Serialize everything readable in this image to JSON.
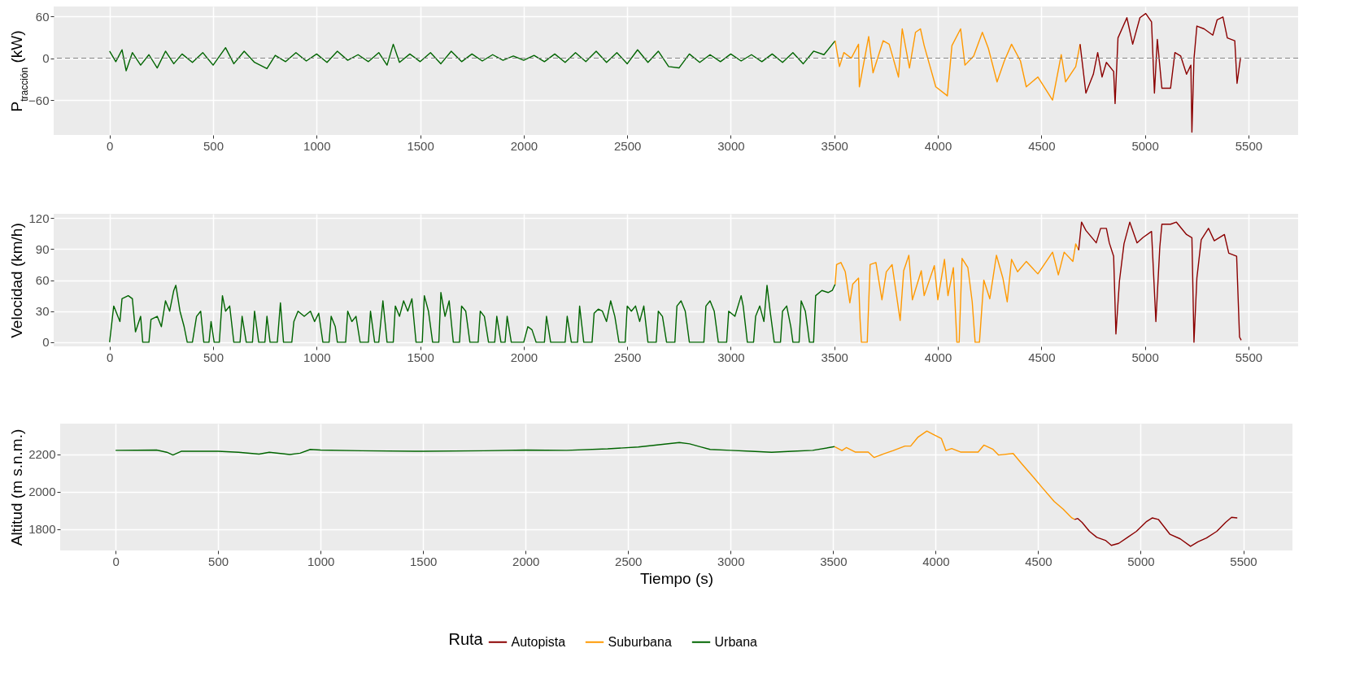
{
  "chart_data": [
    {
      "type": "line",
      "ylabel": "P$_{tracción}$ (kW)",
      "xlim": [
        -270,
        5740
      ],
      "xticks": [
        0,
        500,
        1000,
        1500,
        2000,
        2500,
        3000,
        3500,
        4000,
        4500,
        5000,
        5500
      ],
      "ylim": [
        -110,
        74
      ],
      "yticks": [
        -60,
        0,
        60
      ],
      "grid": true,
      "legend": false,
      "ref_lines": [
        {
          "axis": "y",
          "value": 0,
          "line_style": "dashed",
          "color": "#808080"
        }
      ],
      "series": [
        {
          "color": "#8b0000",
          "x": [
            4687,
            4715,
            4751,
            4772,
            4793,
            4814,
            4849,
            4856,
            4870,
            4913,
            4941,
            4976,
            5004,
            5032,
            5046,
            5060,
            5082,
            5124,
            5145,
            5173,
            5201,
            5222,
            5227,
            5237,
            5251,
            5286,
            5328,
            5349,
            5377,
            5398,
            5434,
            5445,
            5462
          ],
          "values": [
            20,
            -50,
            -23,
            8,
            -27,
            -6,
            -19,
            -65,
            29,
            58,
            20,
            58,
            64,
            52,
            -50,
            27,
            -43,
            -43,
            8,
            3,
            -23,
            -10,
            -106,
            -1,
            46,
            42,
            33,
            55,
            59,
            29,
            25,
            -36,
            1
          ]
        },
        {
          "color": "#ff9900",
          "x": [
            3504,
            3525,
            3546,
            3582,
            3617,
            3621,
            3666,
            3687,
            3736,
            3765,
            3810,
            3828,
            3863,
            3892,
            3916,
            3934,
            3990,
            4046,
            4068,
            4110,
            4131,
            4173,
            4215,
            4244,
            4286,
            4321,
            4356,
            4399,
            4427,
            4483,
            4554,
            4596,
            4617,
            4666,
            4687
          ],
          "values": [
            25,
            -12,
            8,
            0,
            20,
            -41,
            31,
            -21,
            25,
            20,
            -27,
            42,
            -14,
            37,
            42,
            18,
            -41,
            -54,
            18,
            42,
            -10,
            3,
            37,
            14,
            -34,
            -4,
            20,
            -4,
            -41,
            -27,
            -60,
            5,
            -34,
            -12,
            20
          ]
        },
        {
          "color": "#006400",
          "x": [
            0,
            30,
            60,
            80,
            110,
            150,
            190,
            230,
            270,
            310,
            350,
            400,
            450,
            500,
            560,
            600,
            650,
            700,
            760,
            800,
            850,
            900,
            950,
            1000,
            1050,
            1100,
            1150,
            1200,
            1250,
            1300,
            1340,
            1370,
            1400,
            1450,
            1500,
            1550,
            1600,
            1650,
            1700,
            1750,
            1800,
            1850,
            1900,
            1950,
            2000,
            2050,
            2100,
            2150,
            2200,
            2250,
            2300,
            2350,
            2400,
            2450,
            2500,
            2550,
            2600,
            2650,
            2700,
            2750,
            2800,
            2850,
            2900,
            2950,
            3000,
            3050,
            3100,
            3150,
            3200,
            3250,
            3300,
            3350,
            3400,
            3450,
            3504
          ],
          "values": [
            10,
            -5,
            12,
            -18,
            8,
            -10,
            5,
            -14,
            10,
            -8,
            6,
            -6,
            8,
            -10,
            15,
            -8,
            10,
            -6,
            -15,
            4,
            -5,
            8,
            -4,
            6,
            -6,
            10,
            -3,
            5,
            -5,
            8,
            -10,
            20,
            -6,
            6,
            -5,
            8,
            -8,
            10,
            -5,
            6,
            -4,
            5,
            -3,
            3,
            -3,
            4,
            -5,
            6,
            -6,
            8,
            -5,
            10,
            -6,
            8,
            -8,
            12,
            -6,
            10,
            -12,
            -14,
            6,
            -6,
            5,
            -5,
            6,
            -4,
            5,
            -5,
            6,
            -6,
            8,
            -8,
            10,
            5,
            25
          ]
        }
      ]
    },
    {
      "type": "line",
      "ylabel": "Velocidad (km/h)",
      "xlim": [
        -270,
        5740
      ],
      "xticks": [
        0,
        500,
        1000,
        1500,
        2000,
        2500,
        3000,
        3500,
        4000,
        4500,
        5000,
        5500
      ],
      "ylim": [
        -4,
        124
      ],
      "yticks": [
        0,
        30,
        60,
        90,
        120
      ],
      "grid": true,
      "legend": false,
      "series": [
        {
          "color": "#8b0000",
          "x": [
            4680,
            4694,
            4715,
            4765,
            4786,
            4814,
            4828,
            4849,
            4860,
            4877,
            4899,
            4927,
            4962,
            4990,
            5032,
            5053,
            5072,
            5082,
            5124,
            5152,
            5201,
            5227,
            5237,
            5251,
            5272,
            5307,
            5335,
            5384,
            5405,
            5443,
            5457,
            5465
          ],
          "values": [
            89,
            116,
            108,
            96,
            110,
            110,
            96,
            83,
            8,
            59,
            95,
            116,
            96,
            101,
            107,
            20,
            92,
            114,
            114,
            116,
            104,
            101,
            0,
            62,
            99,
            110,
            98,
            104,
            86,
            83,
            5,
            2
          ]
        },
        {
          "color": "#ff9900",
          "x": [
            3504,
            3511,
            3532,
            3553,
            3575,
            3589,
            3617,
            3624,
            3631,
            3659,
            3673,
            3701,
            3730,
            3751,
            3779,
            3818,
            3835,
            3860,
            3877,
            3920,
            3934,
            3983,
            4000,
            4032,
            4049,
            4075,
            4092,
            4103,
            4117,
            4145,
            4166,
            4180,
            4201,
            4222,
            4251,
            4283,
            4314,
            4335,
            4356,
            4385,
            4427,
            4483,
            4554,
            4582,
            4610,
            4652,
            4666,
            4680
          ],
          "values": [
            56,
            75,
            77,
            68,
            38,
            56,
            62,
            23,
            0,
            0,
            75,
            77,
            41,
            68,
            75,
            21,
            69,
            84,
            41,
            69,
            45,
            74,
            41,
            80,
            45,
            72,
            0,
            0,
            81,
            72,
            39,
            0,
            0,
            60,
            42,
            84,
            62,
            39,
            80,
            68,
            78,
            66,
            87,
            65,
            87,
            78,
            95,
            89
          ]
        },
        {
          "color": "#006400",
          "x": [
            0,
            20,
            50,
            60,
            90,
            110,
            125,
            150,
            160,
            190,
            200,
            230,
            250,
            270,
            290,
            310,
            320,
            340,
            360,
            375,
            400,
            420,
            440,
            455,
            480,
            490,
            505,
            530,
            545,
            560,
            580,
            600,
            630,
            640,
            660,
            690,
            700,
            720,
            750,
            760,
            775,
            810,
            825,
            840,
            880,
            890,
            910,
            940,
            970,
            990,
            1010,
            1030,
            1060,
            1070,
            1090,
            1100,
            1140,
            1150,
            1170,
            1190,
            1210,
            1250,
            1260,
            1280,
            1300,
            1320,
            1340,
            1370,
            1380,
            1400,
            1420,
            1440,
            1460,
            1480,
            1510,
            1520,
            1540,
            1560,
            1590,
            1600,
            1620,
            1640,
            1660,
            1690,
            1700,
            1720,
            1740,
            1780,
            1790,
            1810,
            1830,
            1860,
            1870,
            1890,
            1910,
            1920,
            1940,
            2000,
            2020,
            2040,
            2060,
            2100,
            2110,
            2130,
            2200,
            2210,
            2230,
            2260,
            2270,
            2290,
            2330,
            2340,
            2360,
            2380,
            2400,
            2420,
            2440,
            2460,
            2490,
            2500,
            2520,
            2540,
            2560,
            2580,
            2600,
            2640,
            2650,
            2670,
            2690,
            2730,
            2740,
            2760,
            2780,
            2800,
            2870,
            2880,
            2900,
            2920,
            2940,
            2980,
            2990,
            3020,
            3050,
            3060,
            3080,
            3110,
            3120,
            3140,
            3160,
            3175,
            3190,
            3210,
            3240,
            3250,
            3270,
            3290,
            3300,
            3330,
            3340,
            3360,
            3380,
            3400,
            3410,
            3440,
            3470,
            3490,
            3504
          ],
          "values": [
            0,
            35,
            20,
            42,
            45,
            42,
            10,
            25,
            0,
            0,
            22,
            25,
            15,
            40,
            30,
            50,
            55,
            30,
            15,
            0,
            0,
            25,
            30,
            0,
            0,
            20,
            0,
            0,
            45,
            30,
            35,
            0,
            0,
            25,
            0,
            0,
            30,
            0,
            0,
            25,
            0,
            0,
            38,
            0,
            0,
            20,
            30,
            25,
            30,
            20,
            28,
            0,
            0,
            25,
            15,
            0,
            0,
            30,
            20,
            25,
            0,
            0,
            30,
            0,
            0,
            40,
            0,
            0,
            35,
            25,
            40,
            30,
            42,
            0,
            0,
            45,
            30,
            0,
            0,
            48,
            25,
            40,
            0,
            0,
            35,
            30,
            0,
            0,
            30,
            25,
            0,
            0,
            25,
            0,
            0,
            25,
            0,
            0,
            15,
            12,
            0,
            0,
            25,
            0,
            0,
            25,
            0,
            0,
            35,
            0,
            0,
            28,
            32,
            30,
            20,
            40,
            25,
            0,
            0,
            35,
            30,
            35,
            20,
            35,
            0,
            0,
            30,
            25,
            0,
            0,
            35,
            40,
            30,
            0,
            0,
            35,
            40,
            30,
            0,
            0,
            30,
            25,
            45,
            35,
            0,
            0,
            25,
            35,
            20,
            55,
            30,
            0,
            0,
            30,
            35,
            15,
            0,
            0,
            40,
            30,
            0,
            0,
            45,
            50,
            48,
            50,
            56
          ]
        }
      ]
    },
    {
      "type": "line",
      "xlabel": "Tiempo (s)",
      "ylabel": "Altitud (m s.n.m.)",
      "legend_title": "Ruta",
      "xlim": [
        -270,
        5740
      ],
      "xticks": [
        0,
        500,
        1000,
        1500,
        2000,
        2500,
        3000,
        3500,
        4000,
        4500,
        5000,
        5500
      ],
      "ylim": [
        1685,
        2363
      ],
      "yticks": [
        1800,
        2000,
        2200
      ],
      "grid": true,
      "legend": "bottom",
      "series": [
        {
          "name": "Autopista",
          "color": "#8b0000",
          "x": [
            4678,
            4693,
            4714,
            4750,
            4786,
            4828,
            4857,
            4893,
            4936,
            4979,
            5029,
            5057,
            5086,
            5143,
            5193,
            5243,
            5279,
            5321,
            5371,
            5414,
            5443,
            5471
          ],
          "values": [
            1851,
            1856,
            1835,
            1787,
            1755,
            1739,
            1712,
            1723,
            1755,
            1787,
            1840,
            1859,
            1851,
            1771,
            1747,
            1707,
            1731,
            1752,
            1787,
            1835,
            1862,
            1859
          ]
        },
        {
          "name": "Suburbana",
          "color": "#ff9900",
          "x": [
            3507,
            3543,
            3564,
            3607,
            3671,
            3700,
            3750,
            3793,
            3850,
            3878,
            3914,
            3957,
            3985,
            4028,
            4050,
            4078,
            4121,
            4207,
            4235,
            4278,
            4307,
            4378,
            4421,
            4478,
            4521,
            4578,
            4621,
            4664,
            4678
          ],
          "values": [
            2240,
            2219,
            2235,
            2211,
            2211,
            2182,
            2203,
            2219,
            2243,
            2243,
            2291,
            2323,
            2307,
            2283,
            2219,
            2230,
            2211,
            2211,
            2248,
            2227,
            2195,
            2203,
            2147,
            2075,
            2019,
            1947,
            1907,
            1859,
            1851
          ]
        },
        {
          "name": "Urbana",
          "color": "#006400",
          "x": [
            0,
            200,
            250,
            280,
            320,
            500,
            600,
            700,
            750,
            850,
            900,
            950,
            1000,
            1200,
            1500,
            1800,
            2000,
            2200,
            2400,
            2550,
            2650,
            2750,
            2800,
            2850,
            2900,
            3000,
            3100,
            3200,
            3300,
            3400,
            3507
          ],
          "values": [
            2220,
            2222,
            2210,
            2195,
            2215,
            2215,
            2210,
            2200,
            2210,
            2198,
            2205,
            2225,
            2222,
            2218,
            2215,
            2218,
            2222,
            2220,
            2228,
            2238,
            2250,
            2262,
            2255,
            2240,
            2225,
            2220,
            2215,
            2210,
            2215,
            2220,
            2240
          ]
        }
      ]
    }
  ]
}
